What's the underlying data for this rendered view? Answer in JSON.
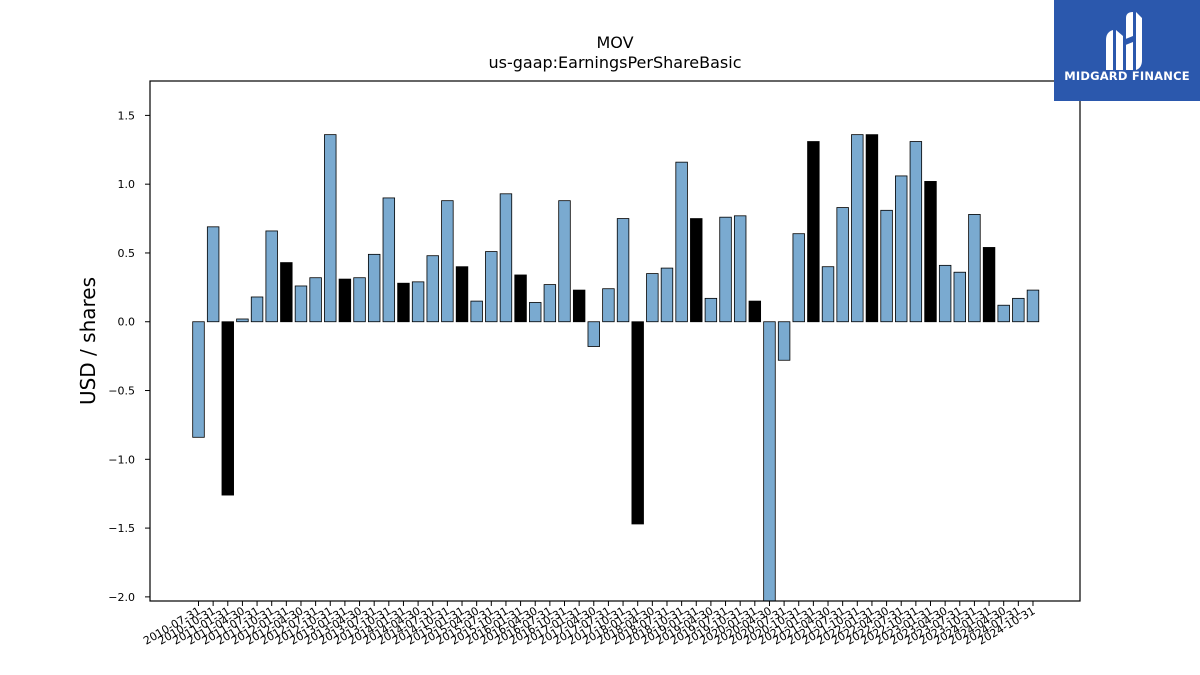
{
  "chart_data": {
    "type": "bar",
    "title": "MOV",
    "subtitle": "us-gaap:EarningsPerShareBasic",
    "xlabel": "",
    "ylabel": "USD / shares",
    "ylim": [
      -2.03,
      1.75
    ],
    "yticks": [
      -2.0,
      -1.5,
      -1.0,
      -0.5,
      0.0,
      0.5,
      1.0,
      1.5
    ],
    "yticklabels": [
      "−2.0",
      "−1.5",
      "−1.0",
      "−0.5",
      "0.0",
      "0.5",
      "1.0",
      "1.5"
    ],
    "grid": false,
    "colors": {
      "quarterly": "#7aaad0",
      "annual": "#000000",
      "edge": "#000000"
    },
    "categories": [
      "2010-07-31",
      "2010-10-31",
      "2011-01-31",
      "2011-04-30",
      "2011-07-31",
      "2011-10-31",
      "2012-01-31",
      "2012-04-30",
      "2012-07-31",
      "2012-10-31",
      "2013-01-31",
      "2013-04-30",
      "2013-07-31",
      "2013-10-31",
      "2014-01-31",
      "2014-04-30",
      "2014-07-31",
      "2014-10-31",
      "2015-01-31",
      "2015-04-30",
      "2015-07-31",
      "2015-10-31",
      "2016-01-31",
      "2016-04-30",
      "2016-07-31",
      "2016-10-31",
      "2017-01-31",
      "2017-04-30",
      "2017-07-31",
      "2017-10-31",
      "2018-01-31",
      "2018-04-30",
      "2018-07-31",
      "2018-10-31",
      "2019-01-31",
      "2019-04-30",
      "2019-07-31",
      "2019-10-31",
      "2020-01-31",
      "2020-04-30",
      "2020-07-31",
      "2020-10-31",
      "2021-01-31",
      "2021-04-30",
      "2021-07-31",
      "2021-10-31",
      "2022-01-31",
      "2022-04-30",
      "2022-07-31",
      "2022-10-31",
      "2023-01-31",
      "2023-04-30",
      "2023-07-31",
      "2023-10-31",
      "2024-01-31",
      "2024-04-30",
      "2024-07-31",
      "2024-10-31"
    ],
    "values": [
      -0.84,
      0.69,
      -1.26,
      0.02,
      0.18,
      0.66,
      0.43,
      0.26,
      0.32,
      1.36,
      0.31,
      0.32,
      0.49,
      0.9,
      0.28,
      0.29,
      0.48,
      0.88,
      0.4,
      0.15,
      0.51,
      0.93,
      0.34,
      0.14,
      0.27,
      0.88,
      0.23,
      -0.18,
      0.24,
      0.75,
      -1.47,
      0.35,
      0.39,
      1.16,
      0.75,
      0.17,
      0.76,
      0.77,
      0.15,
      -2.05,
      -0.28,
      0.64,
      1.31,
      0.4,
      0.83,
      1.36,
      1.36,
      0.81,
      1.06,
      1.31,
      1.02,
      0.41,
      0.36,
      0.78,
      0.54,
      0.12,
      0.17,
      0.23
    ],
    "annual": [
      false,
      false,
      true,
      false,
      false,
      false,
      true,
      false,
      false,
      false,
      true,
      false,
      false,
      false,
      true,
      false,
      false,
      false,
      true,
      false,
      false,
      false,
      true,
      false,
      false,
      false,
      true,
      false,
      false,
      false,
      true,
      false,
      false,
      false,
      true,
      false,
      false,
      false,
      true,
      false,
      false,
      false,
      true,
      false,
      false,
      false,
      true,
      false,
      false,
      false,
      true,
      false,
      false,
      false,
      true,
      false,
      false,
      false
    ]
  },
  "logo": {
    "text": "MIDGARD FINANCE",
    "color": "#2b58ad"
  }
}
